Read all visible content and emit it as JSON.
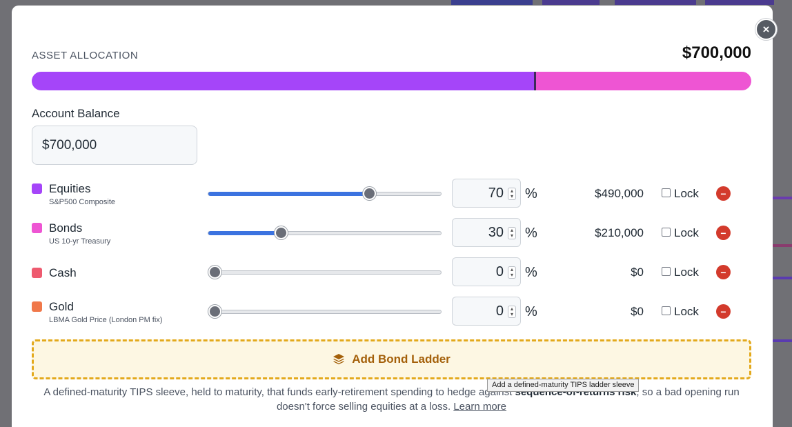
{
  "modal": {
    "close_symbol": "×",
    "allocation_label": "ASSET ALLOCATION",
    "total": "$700,000",
    "bar": [
      {
        "asset": "Equities",
        "percent": 70,
        "color": "#a545f9"
      },
      {
        "asset": "Bonds",
        "percent": 30,
        "color": "#ee55d3"
      }
    ],
    "balance": {
      "label": "Account Balance",
      "value": "$700,000"
    },
    "assets": [
      {
        "name": "Equities",
        "sub": "S&P500 Composite",
        "percent": 70,
        "amount": "$490,000",
        "color": "#a545f9",
        "lock_label": "Lock",
        "locked": false
      },
      {
        "name": "Bonds",
        "sub": "US 10-yr Treasury",
        "percent": 30,
        "amount": "$210,000",
        "color": "#ee55d3",
        "lock_label": "Lock",
        "locked": false
      },
      {
        "name": "Cash",
        "sub": "",
        "percent": 0,
        "amount": "$0",
        "color": "#ee5a6f",
        "lock_label": "Lock",
        "locked": false
      },
      {
        "name": "Gold",
        "sub": "LBMA Gold Price (London PM fix)",
        "percent": 0,
        "amount": "$0",
        "color": "#f0784a",
        "lock_label": "Lock",
        "locked": false
      }
    ],
    "percent_symbol": "%",
    "add_ladder": {
      "icon": "layers-icon",
      "label": "Add Bond Ladder",
      "tooltip": "Add a defined-maturity TIPS ladder sleeve"
    },
    "description": {
      "before": "A defined-maturity TIPS sleeve, held to maturity, that funds early-retirement spending to hedge against ",
      "bold": "sequence-of-returns risk",
      "after": ", so a bad opening run doesn't force selling equities at a loss. ",
      "link": "Learn more"
    }
  }
}
